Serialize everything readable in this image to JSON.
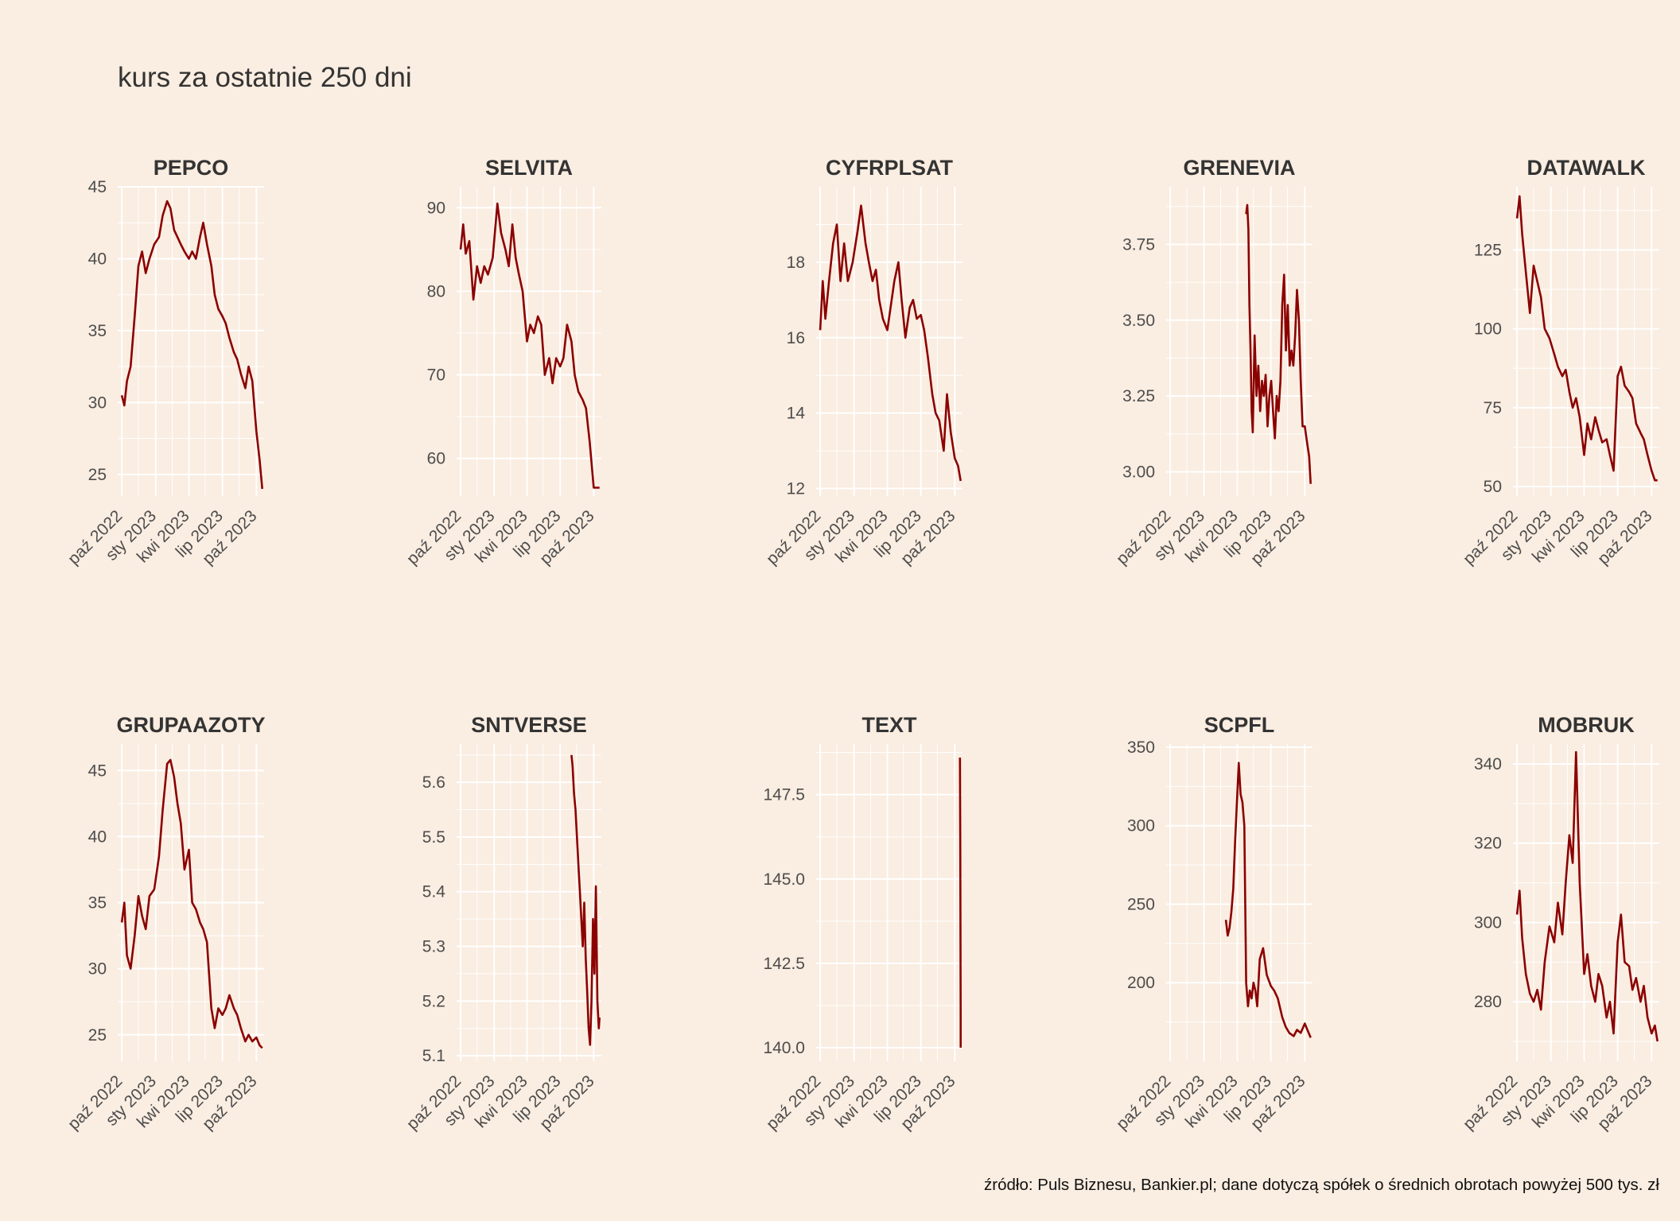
{
  "title": "kurs za ostatnie 250 dni",
  "caption": "źródło: Puls Biznesu, Bankier.pl; dane dotyczą spółek o średnich obrotach powyżej 500 tys. zł",
  "colors": {
    "background": "#faede1",
    "line": "#8b0000",
    "grid": "#ffffff",
    "text": "#333333"
  },
  "chart_data": [
    {
      "type": "line",
      "title": "PEPCO",
      "x_tick_labels": [
        "paź 2022",
        "sty 2023",
        "kwi 2023",
        "lip 2023",
        "paź 2023"
      ],
      "xlim": [
        "2022-09-20",
        "2023-10-22"
      ],
      "ylim": [
        23.5,
        45
      ],
      "y_ticks": [
        25,
        30,
        35,
        40,
        45
      ],
      "y_tick_labels": [
        "25",
        "30",
        "35",
        "40",
        "45"
      ],
      "x": [
        "2022-10-01",
        "2022-10-08",
        "2022-10-15",
        "2022-10-25",
        "2022-11-05",
        "2022-11-15",
        "2022-11-25",
        "2022-12-05",
        "2022-12-15",
        "2022-12-28",
        "2023-01-10",
        "2023-01-20",
        "2023-02-01",
        "2023-02-10",
        "2023-02-20",
        "2023-03-01",
        "2023-03-10",
        "2023-03-20",
        "2023-04-01",
        "2023-04-10",
        "2023-04-20",
        "2023-05-01",
        "2023-05-10",
        "2023-05-20",
        "2023-06-01",
        "2023-06-10",
        "2023-06-20",
        "2023-07-01",
        "2023-07-10",
        "2023-07-20",
        "2023-08-01",
        "2023-08-10",
        "2023-08-20",
        "2023-09-01",
        "2023-09-10",
        "2023-09-20",
        "2023-10-01",
        "2023-10-10",
        "2023-10-17"
      ],
      "y": [
        30.5,
        29.8,
        31.5,
        32.5,
        36.0,
        39.5,
        40.5,
        39.0,
        40.0,
        41.0,
        41.5,
        43.0,
        44.0,
        43.5,
        42.0,
        41.5,
        41.0,
        40.5,
        40.0,
        40.5,
        40.0,
        41.5,
        42.5,
        41.0,
        39.5,
        37.5,
        36.5,
        36.0,
        35.5,
        34.5,
        33.5,
        33.0,
        32.0,
        31.0,
        32.5,
        31.5,
        28.0,
        26.0,
        24.0
      ]
    },
    {
      "type": "line",
      "title": "SELVITA",
      "x_tick_labels": [
        "paź 2022",
        "sty 2023",
        "kwi 2023",
        "lip 2023",
        "paź 2023"
      ],
      "xlim": [
        "2022-09-20",
        "2023-10-22"
      ],
      "ylim": [
        55.5,
        92.5
      ],
      "y_ticks": [
        60,
        70,
        80,
        90
      ],
      "y_tick_labels": [
        "60",
        "70",
        "80",
        "90"
      ],
      "x": [
        "2022-10-01",
        "2022-10-08",
        "2022-10-15",
        "2022-10-25",
        "2022-11-05",
        "2022-11-15",
        "2022-11-25",
        "2022-12-05",
        "2022-12-15",
        "2022-12-28",
        "2023-01-10",
        "2023-01-20",
        "2023-02-01",
        "2023-02-10",
        "2023-02-20",
        "2023-03-01",
        "2023-03-10",
        "2023-03-20",
        "2023-04-01",
        "2023-04-10",
        "2023-04-20",
        "2023-05-01",
        "2023-05-10",
        "2023-05-20",
        "2023-06-01",
        "2023-06-10",
        "2023-06-20",
        "2023-07-01",
        "2023-07-10",
        "2023-07-20",
        "2023-08-01",
        "2023-08-10",
        "2023-08-20",
        "2023-09-01",
        "2023-09-10",
        "2023-09-20",
        "2023-10-01",
        "2023-10-10",
        "2023-10-17"
      ],
      "y": [
        85.0,
        88.0,
        84.5,
        86.0,
        79.0,
        83.0,
        81.0,
        83.0,
        82.0,
        84.0,
        90.5,
        87.0,
        85.0,
        83.0,
        88.0,
        84.0,
        82.0,
        80.0,
        74.0,
        76.0,
        75.0,
        77.0,
        76.0,
        70.0,
        72.0,
        69.0,
        72.0,
        71.0,
        72.0,
        76.0,
        74.0,
        70.0,
        68.0,
        67.0,
        66.0,
        62.0,
        56.5,
        56.5,
        56.5
      ]
    },
    {
      "type": "line",
      "title": "CYFRPLSAT",
      "x_tick_labels": [
        "paź 2022",
        "sty 2023",
        "kwi 2023",
        "lip 2023",
        "paź 2023"
      ],
      "xlim": [
        "2022-09-20",
        "2023-10-22"
      ],
      "ylim": [
        11.8,
        20.0
      ],
      "y_ticks": [
        12,
        14,
        16,
        18
      ],
      "y_tick_labels": [
        "12",
        "14",
        "16",
        "18"
      ],
      "x": [
        "2022-10-01",
        "2022-10-08",
        "2022-10-15",
        "2022-10-25",
        "2022-11-05",
        "2022-11-15",
        "2022-11-25",
        "2022-12-05",
        "2022-12-15",
        "2022-12-28",
        "2023-01-10",
        "2023-01-20",
        "2023-02-01",
        "2023-02-10",
        "2023-02-20",
        "2023-03-01",
        "2023-03-10",
        "2023-03-20",
        "2023-04-01",
        "2023-04-10",
        "2023-04-20",
        "2023-05-01",
        "2023-05-10",
        "2023-05-20",
        "2023-06-01",
        "2023-06-10",
        "2023-06-20",
        "2023-07-01",
        "2023-07-10",
        "2023-07-20",
        "2023-08-01",
        "2023-08-10",
        "2023-08-20",
        "2023-09-01",
        "2023-09-10",
        "2023-09-20",
        "2023-10-01",
        "2023-10-10",
        "2023-10-17"
      ],
      "y": [
        16.2,
        17.5,
        16.5,
        17.5,
        18.5,
        19.0,
        17.5,
        18.5,
        17.5,
        18.0,
        18.8,
        19.5,
        18.5,
        18.0,
        17.5,
        17.8,
        17.0,
        16.5,
        16.2,
        16.8,
        17.5,
        18.0,
        17.0,
        16.0,
        16.8,
        17.0,
        16.5,
        16.6,
        16.2,
        15.5,
        14.5,
        14.0,
        13.8,
        13.0,
        14.5,
        13.5,
        12.8,
        12.6,
        12.2
      ]
    },
    {
      "type": "line",
      "title": "GRENEVIA",
      "x_tick_labels": [
        "paź 2022",
        "sty 2023",
        "kwi 2023",
        "lip 2023",
        "paź 2023"
      ],
      "xlim": [
        "2022-09-20",
        "2023-10-22"
      ],
      "ylim": [
        2.92,
        3.94
      ],
      "y_ticks": [
        3.0,
        3.25,
        3.5,
        3.75
      ],
      "y_tick_labels": [
        "3.00",
        "3.25",
        "3.50",
        "3.75"
      ],
      "x": [
        "2023-04-25",
        "2023-04-28",
        "2023-05-01",
        "2023-05-04",
        "2023-05-07",
        "2023-05-10",
        "2023-05-13",
        "2023-05-18",
        "2023-05-23",
        "2023-05-28",
        "2023-06-02",
        "2023-06-07",
        "2023-06-12",
        "2023-06-17",
        "2023-06-22",
        "2023-06-27",
        "2023-07-02",
        "2023-07-07",
        "2023-07-12",
        "2023-07-17",
        "2023-07-22",
        "2023-07-27",
        "2023-08-01",
        "2023-08-06",
        "2023-08-11",
        "2023-08-16",
        "2023-08-21",
        "2023-08-26",
        "2023-08-31",
        "2023-09-05",
        "2023-09-10",
        "2023-09-15",
        "2023-09-20",
        "2023-09-25",
        "2023-10-01",
        "2023-10-07",
        "2023-10-13",
        "2023-10-17"
      ],
      "y": [
        3.85,
        3.88,
        3.8,
        3.55,
        3.4,
        3.2,
        3.13,
        3.45,
        3.25,
        3.35,
        3.2,
        3.3,
        3.25,
        3.32,
        3.15,
        3.25,
        3.3,
        3.2,
        3.11,
        3.25,
        3.2,
        3.3,
        3.55,
        3.65,
        3.4,
        3.55,
        3.35,
        3.4,
        3.35,
        3.45,
        3.6,
        3.5,
        3.3,
        3.15,
        3.15,
        3.1,
        3.05,
        2.96
      ]
    },
    {
      "type": "line",
      "title": "DATAWALK",
      "x_tick_labels": [
        "paź 2022",
        "sty 2023",
        "kwi 2023",
        "lip 2023",
        "paź 2023"
      ],
      "xlim": [
        "2022-09-20",
        "2023-10-22"
      ],
      "ylim": [
        47,
        145
      ],
      "y_ticks": [
        50,
        75,
        100,
        125
      ],
      "y_tick_labels": [
        "50",
        "75",
        "100",
        "125"
      ],
      "x": [
        "2022-10-01",
        "2022-10-08",
        "2022-10-15",
        "2022-10-25",
        "2022-11-05",
        "2022-11-15",
        "2022-11-25",
        "2022-12-05",
        "2022-12-15",
        "2022-12-28",
        "2023-01-10",
        "2023-01-20",
        "2023-02-01",
        "2023-02-10",
        "2023-02-20",
        "2023-03-01",
        "2023-03-10",
        "2023-03-20",
        "2023-04-01",
        "2023-04-10",
        "2023-04-20",
        "2023-05-01",
        "2023-05-10",
        "2023-05-20",
        "2023-06-01",
        "2023-06-10",
        "2023-06-20",
        "2023-07-01",
        "2023-07-10",
        "2023-07-20",
        "2023-08-01",
        "2023-08-10",
        "2023-08-20",
        "2023-09-01",
        "2023-09-10",
        "2023-09-20",
        "2023-10-01",
        "2023-10-10",
        "2023-10-17"
      ],
      "y": [
        135,
        142,
        130,
        118,
        105,
        120,
        115,
        110,
        100,
        97,
        92,
        88,
        85,
        87,
        80,
        75,
        78,
        72,
        60,
        70,
        65,
        72,
        68,
        64,
        65,
        60,
        55,
        85,
        88,
        82,
        80,
        78,
        70,
        67,
        65,
        60,
        55,
        52,
        52
      ]
    },
    {
      "type": "line",
      "title": "GRUPAAZOTY",
      "x_tick_labels": [
        "paź 2022",
        "sty 2023",
        "kwi 2023",
        "lip 2023",
        "paź 2023"
      ],
      "xlim": [
        "2022-09-20",
        "2023-10-22"
      ],
      "ylim": [
        23,
        47
      ],
      "y_ticks": [
        25,
        30,
        35,
        40,
        45
      ],
      "y_tick_labels": [
        "25",
        "30",
        "35",
        "40",
        "45"
      ],
      "x": [
        "2022-10-01",
        "2022-10-08",
        "2022-10-15",
        "2022-10-25",
        "2022-11-05",
        "2022-11-15",
        "2022-11-25",
        "2022-12-05",
        "2022-12-15",
        "2022-12-28",
        "2023-01-10",
        "2023-01-20",
        "2023-02-01",
        "2023-02-10",
        "2023-02-20",
        "2023-03-01",
        "2023-03-10",
        "2023-03-20",
        "2023-04-01",
        "2023-04-10",
        "2023-04-20",
        "2023-05-01",
        "2023-05-10",
        "2023-05-20",
        "2023-06-01",
        "2023-06-10",
        "2023-06-20",
        "2023-07-01",
        "2023-07-10",
        "2023-07-20",
        "2023-08-01",
        "2023-08-10",
        "2023-08-20",
        "2023-09-01",
        "2023-09-10",
        "2023-09-20",
        "2023-10-01",
        "2023-10-10",
        "2023-10-17"
      ],
      "y": [
        33.5,
        35.0,
        31.0,
        30.0,
        32.5,
        35.5,
        34.0,
        33.0,
        35.5,
        36.0,
        38.5,
        42.0,
        45.5,
        45.8,
        44.5,
        42.5,
        41.0,
        37.5,
        39.0,
        35.0,
        34.5,
        33.5,
        33.0,
        32.0,
        27.0,
        25.5,
        27.0,
        26.5,
        27.0,
        28.0,
        27.0,
        26.5,
        25.5,
        24.5,
        25.0,
        24.5,
        24.8,
        24.2,
        24.0
      ]
    },
    {
      "type": "line",
      "title": "SNTVERSE",
      "x_tick_labels": [
        "paź 2022",
        "sty 2023",
        "kwi 2023",
        "lip 2023",
        "paź 2023"
      ],
      "xlim": [
        "2022-09-20",
        "2023-10-22"
      ],
      "ylim": [
        5.09,
        5.67
      ],
      "y_ticks": [
        5.1,
        5.2,
        5.3,
        5.4,
        5.5,
        5.6
      ],
      "y_tick_labels": [
        "5.1",
        "5.2",
        "5.3",
        "5.4",
        "5.5",
        "5.6"
      ],
      "x": [
        "2023-08-01",
        "2023-08-04",
        "2023-08-08",
        "2023-08-12",
        "2023-08-16",
        "2023-08-20",
        "2023-08-24",
        "2023-08-28",
        "2023-09-01",
        "2023-09-05",
        "2023-09-09",
        "2023-09-13",
        "2023-09-17",
        "2023-09-21",
        "2023-09-25",
        "2023-09-29",
        "2023-10-03",
        "2023-10-07",
        "2023-10-11",
        "2023-10-15",
        "2023-10-17"
      ],
      "y": [
        5.65,
        5.63,
        5.58,
        5.55,
        5.5,
        5.45,
        5.4,
        5.35,
        5.3,
        5.38,
        5.28,
        5.22,
        5.15,
        5.12,
        5.2,
        5.35,
        5.25,
        5.41,
        5.2,
        5.15,
        5.17
      ]
    },
    {
      "type": "line",
      "title": "TEXT",
      "x_tick_labels": [
        "paź 2022",
        "sty 2023",
        "kwi 2023",
        "lip 2023",
        "paź 2023"
      ],
      "xlim": [
        "2022-09-20",
        "2023-10-22"
      ],
      "ylim": [
        139.6,
        149.0
      ],
      "y_ticks": [
        140.0,
        142.5,
        145.0,
        147.5
      ],
      "y_tick_labels": [
        "140.0",
        "142.5",
        "145.0",
        "147.5"
      ],
      "x": [
        "2023-10-15",
        "2023-10-16",
        "2023-10-17",
        "2023-10-17"
      ],
      "y": [
        148.6,
        146.0,
        141.0,
        140.0
      ]
    },
    {
      "type": "line",
      "title": "SCPFL",
      "x_tick_labels": [
        "paź 2022",
        "sty 2023",
        "kwi 2023",
        "lip 2023",
        "paź 2023"
      ],
      "xlim": [
        "2022-09-20",
        "2023-10-22"
      ],
      "ylim": [
        150,
        352
      ],
      "y_ticks": [
        200,
        250,
        300,
        350
      ],
      "y_tick_labels": [
        "200",
        "250",
        "300",
        "350"
      ],
      "x": [
        "2023-03-01",
        "2023-03-06",
        "2023-03-11",
        "2023-03-16",
        "2023-03-21",
        "2023-03-26",
        "2023-03-31",
        "2023-04-05",
        "2023-04-10",
        "2023-04-15",
        "2023-04-20",
        "2023-04-25",
        "2023-04-30",
        "2023-05-05",
        "2023-05-10",
        "2023-05-15",
        "2023-05-20",
        "2023-05-25",
        "2023-06-01",
        "2023-06-10",
        "2023-06-20",
        "2023-07-01",
        "2023-07-10",
        "2023-07-20",
        "2023-08-01",
        "2023-08-10",
        "2023-08-20",
        "2023-09-01",
        "2023-09-10",
        "2023-09-20",
        "2023-10-01",
        "2023-10-10",
        "2023-10-17"
      ],
      "y": [
        240,
        230,
        235,
        245,
        260,
        290,
        315,
        340,
        320,
        315,
        300,
        200,
        185,
        195,
        190,
        200,
        195,
        185,
        215,
        222,
        205,
        198,
        195,
        190,
        178,
        172,
        168,
        166,
        170,
        168,
        174,
        169,
        165
      ]
    },
    {
      "type": "line",
      "title": "MOBRUK",
      "x_tick_labels": [
        "paź 2022",
        "sty 2023",
        "kwi 2023",
        "lip 2023",
        "paź 2023"
      ],
      "xlim": [
        "2022-09-20",
        "2023-10-22"
      ],
      "ylim": [
        265,
        345
      ],
      "y_ticks": [
        280,
        300,
        320,
        340
      ],
      "y_tick_labels": [
        "280",
        "300",
        "320",
        "340"
      ],
      "x": [
        "2022-10-01",
        "2022-10-08",
        "2022-10-15",
        "2022-10-25",
        "2022-11-05",
        "2022-11-15",
        "2022-11-25",
        "2022-12-05",
        "2022-12-15",
        "2022-12-28",
        "2023-01-10",
        "2023-01-20",
        "2023-02-01",
        "2023-02-10",
        "2023-02-20",
        "2023-03-01",
        "2023-03-10",
        "2023-03-20",
        "2023-04-01",
        "2023-04-10",
        "2023-04-20",
        "2023-05-01",
        "2023-05-10",
        "2023-05-20",
        "2023-06-01",
        "2023-06-10",
        "2023-06-20",
        "2023-07-01",
        "2023-07-10",
        "2023-07-20",
        "2023-08-01",
        "2023-08-10",
        "2023-08-20",
        "2023-09-01",
        "2023-09-10",
        "2023-09-20",
        "2023-10-01",
        "2023-10-10",
        "2023-10-17"
      ],
      "y": [
        302,
        308,
        296,
        287,
        282,
        280,
        283,
        278,
        290,
        299,
        295,
        305,
        297,
        310,
        322,
        315,
        343,
        310,
        287,
        292,
        284,
        280,
        287,
        284,
        276,
        280,
        272,
        295,
        302,
        290,
        289,
        283,
        286,
        280,
        284,
        276,
        272,
        274,
        270
      ]
    }
  ]
}
